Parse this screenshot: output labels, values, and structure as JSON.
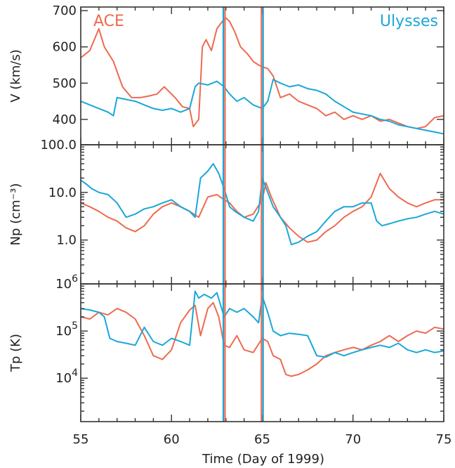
{
  "chart_data": {
    "type": "line",
    "xlabel": "Time (Day of 1999)",
    "xlim": [
      55,
      75
    ],
    "x_ticks": [
      55,
      60,
      65,
      70,
      75
    ],
    "x_tick_labels": [
      "55",
      "60",
      "65",
      "70",
      "75"
    ],
    "colors": {
      "ACE": "#ee6a50",
      "Ulysses": "#1aa7d8"
    },
    "legend": [
      {
        "label": "ACE",
        "color": "#ee6a50",
        "position": "top-left"
      },
      {
        "label": "Ulysses",
        "color": "#1aa7d8",
        "position": "top-right"
      }
    ],
    "vertical_lines": [
      {
        "x": 62.9,
        "colors": [
          "#1aa7d8",
          "#ee6a50"
        ]
      },
      {
        "x": 65.0,
        "colors": [
          "#ee6a50",
          "#1aa7d8"
        ]
      }
    ],
    "panels": [
      {
        "ylabel": "V (km/s)",
        "scale": "linear",
        "ylim": [
          330,
          710
        ],
        "y_ticks": [
          400,
          500,
          600,
          700
        ],
        "y_tick_labels": [
          "400",
          "500",
          "600",
          "700"
        ],
        "series": [
          {
            "name": "ACE",
            "color": "#ee6a50",
            "x": [
              55,
              55.5,
              56,
              56.3,
              56.8,
              57.3,
              57.8,
              58.3,
              58.8,
              59.2,
              59.6,
              60.2,
              60.6,
              61.0,
              61.2,
              61.5,
              61.7,
              61.9,
              62.2,
              62.5,
              62.8,
              63.0,
              63.2,
              63.5,
              63.8,
              64.2,
              64.5,
              64.8,
              65.0,
              65.3,
              65.6,
              66.0,
              66.5,
              67.0,
              67.5,
              68.0,
              68.5,
              69.0,
              69.5,
              70.0,
              70.5,
              71.0,
              71.5,
              72.0,
              72.5,
              73.0,
              73.5,
              74.0,
              74.5,
              75.0
            ],
            "values": [
              570,
              590,
              650,
              600,
              560,
              490,
              460,
              460,
              465,
              470,
              490,
              460,
              435,
              430,
              380,
              400,
              600,
              620,
              590,
              650,
              670,
              680,
              670,
              640,
              600,
              580,
              560,
              550,
              545,
              540,
              520,
              460,
              470,
              450,
              440,
              430,
              410,
              420,
              400,
              410,
              400,
              410,
              395,
              400,
              390,
              380,
              375,
              380,
              405,
              410
            ]
          },
          {
            "name": "Ulysses",
            "color": "#1aa7d8",
            "x": [
              55,
              55.5,
              56,
              56.5,
              56.8,
              57.0,
              57.5,
              58.0,
              58.5,
              59.0,
              59.5,
              60.0,
              60.5,
              61.0,
              61.3,
              61.5,
              62.0,
              62.5,
              62.9,
              63.2,
              63.6,
              64.0,
              64.5,
              65.0,
              65.3,
              65.6,
              66.0,
              66.5,
              67.0,
              67.5,
              68.0,
              68.5,
              69.0,
              69.5,
              70.0,
              70.5,
              71.0,
              71.5,
              72.0,
              72.5,
              73.0,
              73.5,
              74.0,
              74.5,
              75.0
            ],
            "values": [
              450,
              440,
              430,
              420,
              410,
              460,
              455,
              450,
              440,
              430,
              425,
              430,
              420,
              430,
              490,
              500,
              495,
              505,
              490,
              470,
              450,
              460,
              440,
              430,
              450,
              510,
              500,
              490,
              495,
              485,
              480,
              470,
              450,
              435,
              420,
              415,
              410,
              400,
              395,
              385,
              380,
              375,
              370,
              365,
              360
            ]
          }
        ]
      },
      {
        "ylabel": "Np (cm⁻³)",
        "scale": "log",
        "ylim": [
          0.12,
          100
        ],
        "y_ticks": [
          1,
          10,
          100
        ],
        "y_tick_labels": [
          "1.0",
          "10.0",
          "100.0"
        ],
        "series": [
          {
            "name": "ACE",
            "color": "#ee6a50",
            "x": [
              55,
              55.5,
              56,
              56.5,
              57.0,
              57.5,
              58.0,
              58.5,
              59.0,
              59.5,
              60.0,
              60.5,
              61.0,
              61.5,
              62.0,
              62.5,
              62.9,
              63.2,
              63.6,
              64.0,
              64.5,
              65.0,
              65.2,
              65.5,
              66.0,
              66.5,
              67.0,
              67.5,
              68.0,
              68.5,
              69.0,
              69.5,
              70.0,
              70.5,
              71.0,
              71.5,
              72.0,
              72.5,
              73.0,
              73.5,
              74.0,
              74.5,
              75.0
            ],
            "values": [
              6,
              5,
              4,
              3,
              2.5,
              1.8,
              1.5,
              2,
              3.5,
              5,
              6,
              5,
              4,
              3,
              8,
              9,
              7,
              6,
              4,
              3,
              3.5,
              7,
              16,
              8,
              3,
              1.8,
              1.2,
              0.9,
              1.0,
              1.5,
              2,
              3,
              4,
              5,
              8,
              25,
              12,
              8,
              6,
              5,
              6,
              7,
              7
            ]
          },
          {
            "name": "Ulysses",
            "color": "#1aa7d8",
            "x": [
              55,
              55.3,
              55.6,
              56.0,
              56.5,
              57.0,
              57.5,
              58.0,
              58.5,
              59.0,
              59.5,
              60.0,
              60.5,
              61.0,
              61.3,
              61.6,
              62.0,
              62.3,
              62.6,
              62.9,
              63.2,
              63.5,
              64.0,
              64.5,
              64.8,
              65.0,
              65.3,
              65.6,
              66.0,
              66.3,
              66.6,
              67.0,
              67.5,
              68.0,
              68.5,
              69.0,
              69.5,
              70.0,
              70.5,
              71.0,
              71.3,
              71.6,
              72.0,
              72.5,
              73.0,
              73.5,
              74.0,
              74.5,
              75.0
            ],
            "values": [
              18,
              15,
              12,
              10,
              9,
              6,
              3,
              3.5,
              4.5,
              5,
              6,
              7,
              5,
              4,
              3,
              20,
              28,
              40,
              25,
              12,
              5,
              4,
              3,
              2.5,
              4,
              20,
              10,
              5,
              3,
              2,
              0.8,
              0.9,
              1.2,
              1.5,
              2.5,
              4,
              5,
              5,
              6,
              6,
              2.5,
              2,
              2.2,
              2.5,
              2.8,
              3,
              3.5,
              4,
              3.5
            ]
          }
        ]
      },
      {
        "ylabel": "Tp (K)",
        "scale": "log",
        "ylim": [
          1200,
          1000000
        ],
        "y_ticks": [
          10000,
          100000,
          1000000
        ],
        "y_tick_labels": [
          "10",
          "10",
          "10"
        ],
        "y_tick_exponents": [
          "4",
          "5",
          "6"
        ],
        "series": [
          {
            "name": "ACE",
            "color": "#ee6a50",
            "x": [
              55,
              55.5,
              56,
              56.5,
              57.0,
              57.5,
              58.0,
              58.5,
              59.0,
              59.5,
              60.0,
              60.5,
              61.0,
              61.3,
              61.6,
              62.0,
              62.3,
              62.6,
              62.9,
              63.2,
              63.6,
              64.0,
              64.5,
              65.0,
              65.3,
              65.6,
              66.0,
              66.3,
              66.6,
              67.0,
              67.5,
              68.0,
              68.5,
              69.0,
              69.5,
              70.0,
              70.5,
              71.0,
              71.5,
              72.0,
              72.5,
              73.0,
              73.5,
              74.0,
              74.5,
              75.0
            ],
            "values": [
              200000,
              180000,
              250000,
              220000,
              300000,
              250000,
              180000,
              80000,
              30000,
              25000,
              40000,
              150000,
              280000,
              350000,
              80000,
              300000,
              400000,
              200000,
              50000,
              45000,
              80000,
              40000,
              35000,
              70000,
              60000,
              30000,
              25000,
              12000,
              11000,
              12000,
              15000,
              20000,
              30000,
              35000,
              40000,
              45000,
              40000,
              50000,
              60000,
              80000,
              60000,
              80000,
              100000,
              90000,
              120000,
              110000
            ]
          },
          {
            "name": "Ulysses",
            "color": "#1aa7d8",
            "x": [
              55,
              55.5,
              56,
              56.3,
              56.6,
              57.0,
              57.5,
              58.0,
              58.5,
              59.0,
              59.5,
              60.0,
              60.5,
              61.0,
              61.3,
              61.5,
              61.8,
              62.2,
              62.5,
              62.9,
              63.2,
              63.6,
              64.0,
              64.5,
              64.8,
              65.0,
              65.3,
              65.6,
              66.0,
              66.5,
              67.0,
              67.5,
              68.0,
              68.5,
              69.0,
              69.5,
              70.0,
              70.5,
              71.0,
              71.5,
              72.0,
              72.5,
              73.0,
              73.5,
              74.0,
              74.5,
              75.0
            ],
            "values": [
              300000,
              280000,
              250000,
              200000,
              70000,
              60000,
              55000,
              50000,
              120000,
              60000,
              50000,
              70000,
              60000,
              50000,
              700000,
              500000,
              600000,
              500000,
              650000,
              200000,
              300000,
              250000,
              300000,
              200000,
              150000,
              550000,
              250000,
              100000,
              80000,
              90000,
              85000,
              80000,
              30000,
              28000,
              35000,
              30000,
              35000,
              40000,
              45000,
              50000,
              45000,
              55000,
              40000,
              35000,
              40000,
              35000,
              38000
            ]
          }
        ]
      }
    ]
  }
}
